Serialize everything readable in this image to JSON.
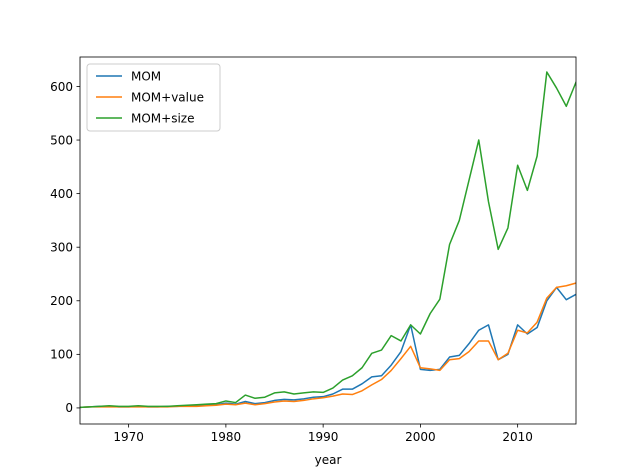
{
  "chart_data": {
    "type": "line",
    "xlabel": "year",
    "ylabel": "",
    "xlim": [
      1965,
      2016
    ],
    "ylim": [
      -30,
      655
    ],
    "xticks": [
      1970,
      1980,
      1990,
      2000,
      2010
    ],
    "yticks": [
      0,
      100,
      200,
      300,
      400,
      500,
      600
    ],
    "legend_location": "upper left",
    "grid": false,
    "x": [
      1965,
      1966,
      1967,
      1968,
      1969,
      1970,
      1971,
      1972,
      1973,
      1974,
      1975,
      1976,
      1977,
      1978,
      1979,
      1980,
      1981,
      1982,
      1983,
      1984,
      1985,
      1986,
      1987,
      1988,
      1989,
      1990,
      1991,
      1992,
      1993,
      1994,
      1995,
      1996,
      1997,
      1998,
      1999,
      2000,
      2001,
      2002,
      2003,
      2004,
      2005,
      2006,
      2007,
      2008,
      2009,
      2010,
      2011,
      2012,
      2013,
      2014,
      2015,
      2016
    ],
    "series": [
      {
        "name": "MOM",
        "color": "#1f77b4",
        "values": [
          1,
          2,
          3,
          3,
          2,
          2,
          3,
          2,
          2,
          3,
          3,
          4,
          4,
          5,
          6,
          9,
          7,
          12,
          8,
          10,
          14,
          16,
          15,
          17,
          20,
          21,
          26,
          35,
          35,
          45,
          58,
          60,
          80,
          105,
          155,
          72,
          70,
          72,
          95,
          98,
          120,
          145,
          155,
          90,
          100,
          155,
          138,
          150,
          200,
          225,
          202,
          212
        ]
      },
      {
        "name": "MOM+value",
        "color": "#ff7f0e",
        "values": [
          1,
          2,
          2,
          2,
          2,
          2,
          2,
          2,
          2,
          2,
          3,
          3,
          3,
          4,
          5,
          7,
          6,
          9,
          6,
          8,
          11,
          13,
          12,
          14,
          17,
          19,
          22,
          26,
          25,
          32,
          43,
          53,
          70,
          92,
          115,
          75,
          73,
          70,
          90,
          92,
          105,
          125,
          125,
          90,
          102,
          145,
          140,
          160,
          205,
          225,
          228,
          233
        ]
      },
      {
        "name": "MOM+size",
        "color": "#2ca02c",
        "values": [
          1,
          2,
          3,
          4,
          3,
          3,
          4,
          3,
          3,
          3,
          4,
          5,
          6,
          7,
          8,
          13,
          10,
          24,
          18,
          20,
          28,
          30,
          26,
          28,
          30,
          29,
          37,
          52,
          60,
          75,
          102,
          108,
          135,
          125,
          155,
          138,
          176,
          203,
          305,
          350,
          425,
          500,
          385,
          296,
          336,
          453,
          406,
          470,
          627,
          597,
          563,
          608
        ]
      }
    ]
  }
}
